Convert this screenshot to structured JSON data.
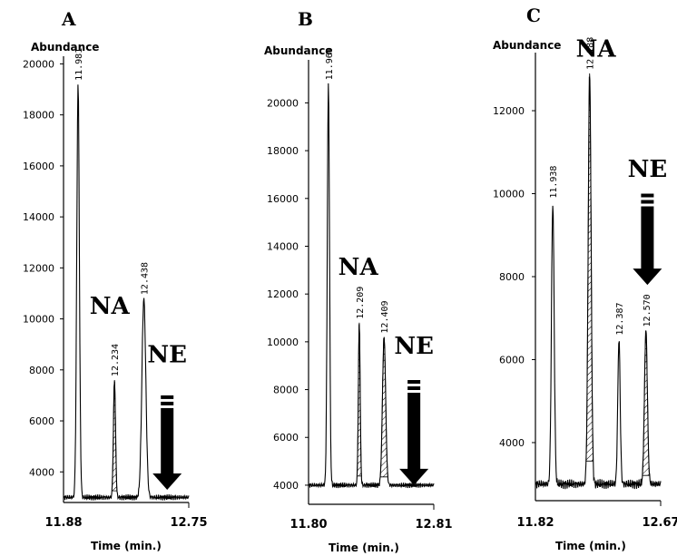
{
  "chart_data": [
    {
      "panel": "A",
      "type": "line",
      "ylabel": "Abundance",
      "xlabel": "Time (min.)",
      "xlim": [
        11.88,
        12.75
      ],
      "ylim": [
        2800,
        20300
      ],
      "x_tick_labels": [
        "11.88",
        "12.75"
      ],
      "y_ticks": [
        4000,
        6000,
        8000,
        10000,
        12000,
        14000,
        16000,
        18000,
        20000
      ],
      "baseline": 3000,
      "peaks": [
        {
          "rt": 11.981,
          "label": "11.981",
          "height": 19200,
          "width": 0.02,
          "hatched": false
        },
        {
          "rt": 12.234,
          "label": "12.234",
          "height": 7600,
          "width": 0.016,
          "hatched": true
        },
        {
          "rt": 12.438,
          "label": "12.438",
          "height": 10800,
          "width": 0.03,
          "hatched": false
        }
      ],
      "annotations": [
        {
          "text": "NA",
          "x": 12.2,
          "y": 10200
        },
        {
          "text": "NE",
          "x": 12.6,
          "y": 8300
        }
      ],
      "arrow": {
        "x": 12.6,
        "y_top": 7000,
        "y_bottom": 3300
      }
    },
    {
      "panel": "B",
      "type": "line",
      "ylabel": "Abundance",
      "xlabel": "Time (min.)",
      "xlim": [
        11.8,
        12.81
      ],
      "ylim": [
        3200,
        21800
      ],
      "x_tick_labels": [
        "11.80",
        "12.81"
      ],
      "y_ticks": [
        4000,
        6000,
        8000,
        10000,
        12000,
        14000,
        16000,
        18000,
        20000
      ],
      "baseline": 4000,
      "peaks": [
        {
          "rt": 11.96,
          "label": "11.960",
          "height": 20800,
          "width": 0.02,
          "hatched": false
        },
        {
          "rt": 12.209,
          "label": "12.209",
          "height": 10800,
          "width": 0.016,
          "hatched": true
        },
        {
          "rt": 12.409,
          "label": "12.409",
          "height": 10200,
          "width": 0.028,
          "hatched": true
        }
      ],
      "annotations": [
        {
          "text": "NA",
          "x": 12.2,
          "y": 12800
        },
        {
          "text": "NE",
          "x": 12.65,
          "y": 9500
        }
      ],
      "arrow": {
        "x": 12.65,
        "y_top": 8400,
        "y_bottom": 4000
      }
    },
    {
      "panel": "C",
      "type": "line",
      "ylabel": "Abundance",
      "xlabel": "Time (min.)",
      "xlim": [
        11.82,
        12.67
      ],
      "ylim": [
        2600,
        13400
      ],
      "x_tick_labels": [
        "11.82",
        "12.67"
      ],
      "y_ticks": [
        4000,
        6000,
        8000,
        10000,
        12000
      ],
      "baseline": 3000,
      "peaks": [
        {
          "rt": 11.938,
          "label": "11.938",
          "height": 9800,
          "width": 0.02,
          "hatched": false
        },
        {
          "rt": 12.188,
          "label": "12.188",
          "height": 12900,
          "width": 0.022,
          "hatched": true
        },
        {
          "rt": 12.387,
          "label": "12.387",
          "height": 6500,
          "width": 0.018,
          "hatched": false
        },
        {
          "rt": 12.57,
          "label": "12.570",
          "height": 6700,
          "width": 0.022,
          "hatched": true
        }
      ],
      "annotations": [
        {
          "text": "NA",
          "x": 12.23,
          "y": 13300
        },
        {
          "text": "NE",
          "x": 12.58,
          "y": 10400
        }
      ],
      "arrow": {
        "x": 12.58,
        "y_top": 10000,
        "y_bottom": 7800
      }
    }
  ]
}
